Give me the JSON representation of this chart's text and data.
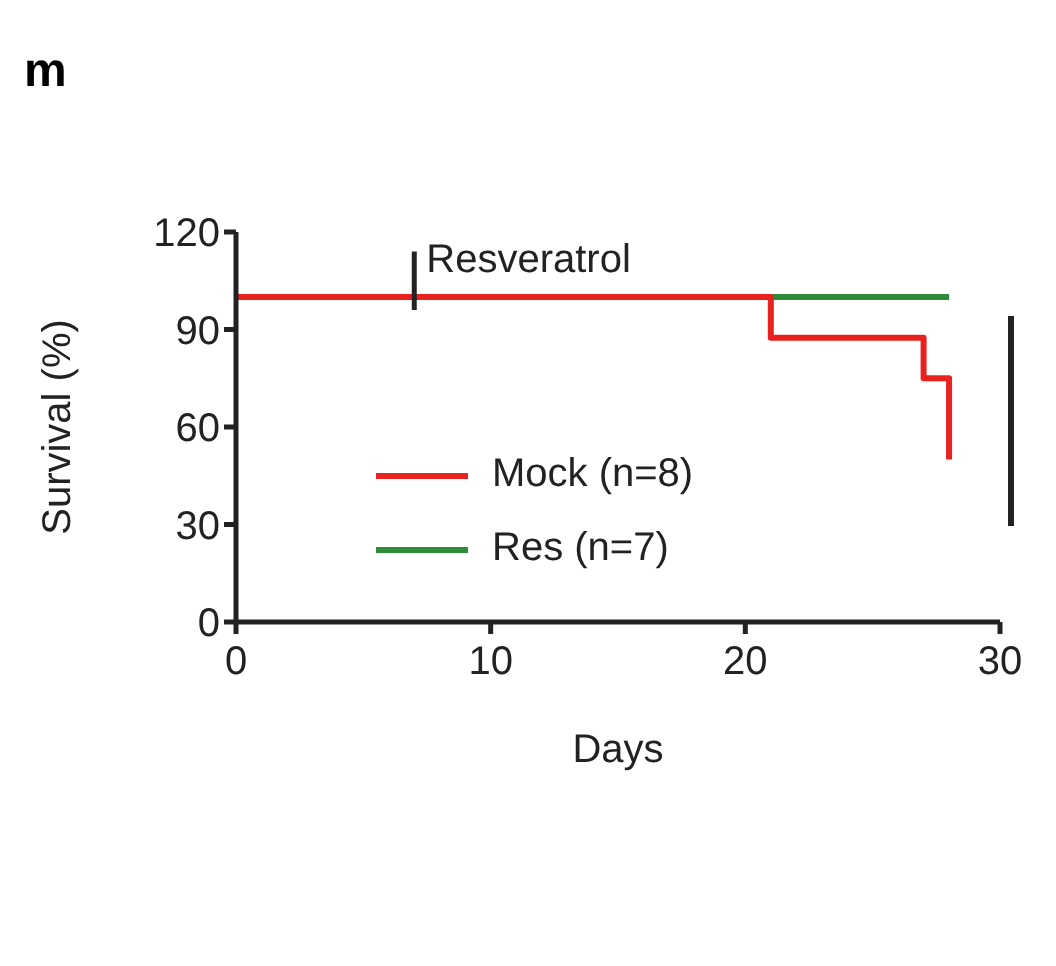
{
  "chart_data": {
    "type": "step",
    "title": "m",
    "xlabel": "Days",
    "ylabel": "Survival (%)",
    "xlim": [
      0,
      30
    ],
    "xticks": [
      0,
      10,
      20,
      30
    ],
    "ylim": [
      0,
      120
    ],
    "yticks": [
      0,
      30,
      60,
      90,
      120
    ],
    "series": [
      {
        "name": "Res (n=7)",
        "color": "#2e8b3a",
        "x": [
          21,
          28
        ],
        "values": [
          100,
          100
        ]
      },
      {
        "name": "Mock (n=8)",
        "color": "#e8221f",
        "x": [
          0,
          21,
          27,
          28
        ],
        "values": [
          100,
          87.5,
          75,
          50
        ]
      }
    ],
    "ref_lines": [
      {
        "axis": "x",
        "value": 7,
        "label": "Resveratrol"
      }
    ],
    "grid": false,
    "legend": "center",
    "marker": "none",
    "line_style": "solid"
  }
}
